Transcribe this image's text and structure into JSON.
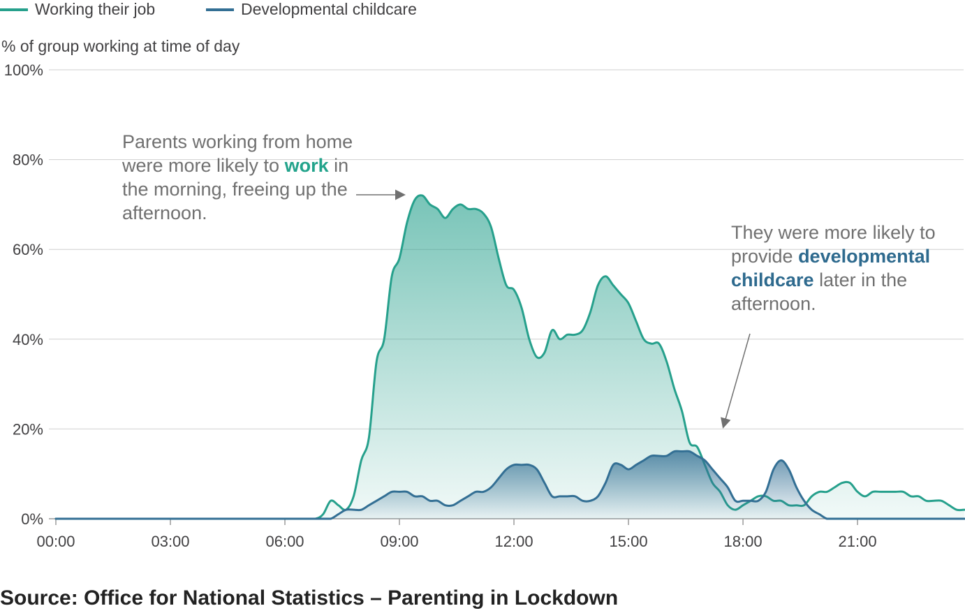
{
  "legend": {
    "items": [
      {
        "label": "Working their job",
        "color": "#26A08C"
      },
      {
        "label": "Developmental childcare",
        "color": "#336F94"
      }
    ]
  },
  "annotations": {
    "left": {
      "before": "Parents working from home were more likely to ",
      "emphasis": "work",
      "after": " in the morning, freeing up the afternoon."
    },
    "right": {
      "before": "They were more likely to provide ",
      "emphasis": "developmental childcare",
      "after": " later in the afternoon."
    }
  },
  "source": "Source: Office for National Statistics – Parenting in Lockdown",
  "chart_data": {
    "type": "area",
    "title": "",
    "ylabel": "% of group working at time of day",
    "xlabel": "",
    "ylim": [
      0,
      100
    ],
    "yticks": [
      0,
      20,
      40,
      60,
      80,
      100
    ],
    "ytick_labels": [
      "0%",
      "20%",
      "40%",
      "60%",
      "80%",
      "100%"
    ],
    "xlim": [
      0,
      23.83
    ],
    "xticks": [
      0,
      3,
      6,
      9,
      12,
      15,
      18,
      21
    ],
    "xtick_labels": [
      "00:00",
      "03:00",
      "06:00",
      "09:00",
      "12:00",
      "15:00",
      "18:00",
      "21:00"
    ],
    "grid": true,
    "legend_position": "top-left",
    "series": [
      {
        "name": "Working their job",
        "color": "#26A08C",
        "points": [
          [
            0,
            0
          ],
          [
            6.5,
            0
          ],
          [
            6.8,
            0
          ],
          [
            7.0,
            1
          ],
          [
            7.2,
            4
          ],
          [
            7.4,
            3
          ],
          [
            7.6,
            2
          ],
          [
            7.8,
            5
          ],
          [
            8.0,
            13
          ],
          [
            8.2,
            18
          ],
          [
            8.4,
            35
          ],
          [
            8.6,
            40
          ],
          [
            8.8,
            54
          ],
          [
            9.0,
            58
          ],
          [
            9.2,
            66
          ],
          [
            9.4,
            71
          ],
          [
            9.6,
            72
          ],
          [
            9.8,
            70
          ],
          [
            10.0,
            69
          ],
          [
            10.2,
            67
          ],
          [
            10.4,
            69
          ],
          [
            10.6,
            70
          ],
          [
            10.8,
            69
          ],
          [
            11.0,
            69
          ],
          [
            11.2,
            68
          ],
          [
            11.4,
            65
          ],
          [
            11.6,
            58
          ],
          [
            11.8,
            52
          ],
          [
            12.0,
            51
          ],
          [
            12.2,
            47
          ],
          [
            12.4,
            40
          ],
          [
            12.6,
            36
          ],
          [
            12.8,
            37
          ],
          [
            13.0,
            42
          ],
          [
            13.2,
            40
          ],
          [
            13.4,
            41
          ],
          [
            13.6,
            41
          ],
          [
            13.8,
            42
          ],
          [
            14.0,
            46
          ],
          [
            14.2,
            52
          ],
          [
            14.4,
            54
          ],
          [
            14.6,
            52
          ],
          [
            14.8,
            50
          ],
          [
            15.0,
            48
          ],
          [
            15.2,
            44
          ],
          [
            15.4,
            40
          ],
          [
            15.6,
            39
          ],
          [
            15.8,
            39
          ],
          [
            16.0,
            35
          ],
          [
            16.2,
            29
          ],
          [
            16.4,
            24
          ],
          [
            16.6,
            17
          ],
          [
            16.8,
            16
          ],
          [
            17.0,
            12
          ],
          [
            17.2,
            8
          ],
          [
            17.4,
            6
          ],
          [
            17.6,
            3
          ],
          [
            17.8,
            2
          ],
          [
            18.0,
            3
          ],
          [
            18.2,
            4
          ],
          [
            18.4,
            5
          ],
          [
            18.6,
            5
          ],
          [
            18.8,
            4
          ],
          [
            19.0,
            4
          ],
          [
            19.2,
            3
          ],
          [
            19.4,
            3
          ],
          [
            19.6,
            3
          ],
          [
            19.8,
            5
          ],
          [
            20.0,
            6
          ],
          [
            20.2,
            6
          ],
          [
            20.4,
            7
          ],
          [
            20.6,
            8
          ],
          [
            20.8,
            8
          ],
          [
            21.0,
            6
          ],
          [
            21.2,
            5
          ],
          [
            21.4,
            6
          ],
          [
            21.6,
            6
          ],
          [
            21.8,
            6
          ],
          [
            22.0,
            6
          ],
          [
            22.2,
            6
          ],
          [
            22.4,
            5
          ],
          [
            22.6,
            5
          ],
          [
            22.8,
            4
          ],
          [
            23.0,
            4
          ],
          [
            23.2,
            4
          ],
          [
            23.4,
            3
          ],
          [
            23.6,
            2
          ],
          [
            23.8,
            2
          ]
        ]
      },
      {
        "name": "Developmental childcare",
        "color": "#336F94",
        "points": [
          [
            0,
            0
          ],
          [
            6.5,
            0
          ],
          [
            6.8,
            0
          ],
          [
            7.0,
            0
          ],
          [
            7.2,
            0
          ],
          [
            7.4,
            1
          ],
          [
            7.6,
            2
          ],
          [
            7.8,
            2
          ],
          [
            8.0,
            2
          ],
          [
            8.2,
            3
          ],
          [
            8.4,
            4
          ],
          [
            8.6,
            5
          ],
          [
            8.8,
            6
          ],
          [
            9.0,
            6
          ],
          [
            9.2,
            6
          ],
          [
            9.4,
            5
          ],
          [
            9.6,
            5
          ],
          [
            9.8,
            4
          ],
          [
            10.0,
            4
          ],
          [
            10.2,
            3
          ],
          [
            10.4,
            3
          ],
          [
            10.6,
            4
          ],
          [
            10.8,
            5
          ],
          [
            11.0,
            6
          ],
          [
            11.2,
            6
          ],
          [
            11.4,
            7
          ],
          [
            11.6,
            9
          ],
          [
            11.8,
            11
          ],
          [
            12.0,
            12
          ],
          [
            12.2,
            12
          ],
          [
            12.4,
            12
          ],
          [
            12.6,
            11
          ],
          [
            12.8,
            8
          ],
          [
            13.0,
            5
          ],
          [
            13.2,
            5
          ],
          [
            13.4,
            5
          ],
          [
            13.6,
            5
          ],
          [
            13.8,
            4
          ],
          [
            14.0,
            4
          ],
          [
            14.2,
            5
          ],
          [
            14.4,
            8
          ],
          [
            14.6,
            12
          ],
          [
            14.8,
            12
          ],
          [
            15.0,
            11
          ],
          [
            15.2,
            12
          ],
          [
            15.4,
            13
          ],
          [
            15.6,
            14
          ],
          [
            15.8,
            14
          ],
          [
            16.0,
            14
          ],
          [
            16.2,
            15
          ],
          [
            16.4,
            15
          ],
          [
            16.6,
            15
          ],
          [
            16.8,
            14
          ],
          [
            17.0,
            13
          ],
          [
            17.2,
            11
          ],
          [
            17.4,
            9
          ],
          [
            17.6,
            7
          ],
          [
            17.8,
            4
          ],
          [
            18.0,
            4
          ],
          [
            18.2,
            4
          ],
          [
            18.4,
            4
          ],
          [
            18.6,
            6
          ],
          [
            18.8,
            11
          ],
          [
            19.0,
            13
          ],
          [
            19.2,
            11
          ],
          [
            19.4,
            7
          ],
          [
            19.6,
            4
          ],
          [
            19.8,
            2
          ],
          [
            20.0,
            1
          ],
          [
            20.2,
            0
          ],
          [
            20.4,
            0
          ],
          [
            20.6,
            0
          ],
          [
            20.8,
            0
          ],
          [
            21.0,
            0
          ],
          [
            22.0,
            0
          ],
          [
            23.0,
            0
          ],
          [
            23.8,
            0
          ]
        ]
      }
    ]
  }
}
